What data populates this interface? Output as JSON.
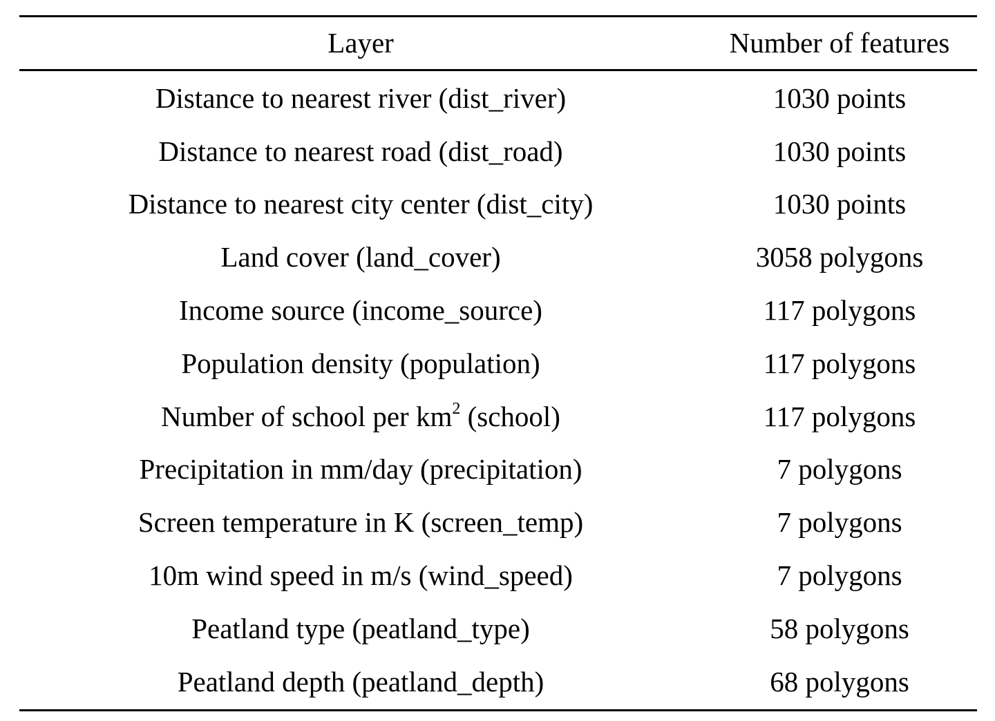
{
  "table": {
    "headers": {
      "layer": "Layer",
      "count": "Number of features"
    },
    "rows": [
      {
        "layer": "Distance to nearest river (dist_river)",
        "count": "1030 points"
      },
      {
        "layer": "Distance to nearest road (dist_road)",
        "count": "1030 points"
      },
      {
        "layer": "Distance to nearest city center (dist_city)",
        "count": "1030 points"
      },
      {
        "layer": "Land cover (land_cover)",
        "count": "3058 polygons"
      },
      {
        "layer": "Income source (income_source)",
        "count": "117 polygons"
      },
      {
        "layer": "Population density (population)",
        "count": "117 polygons"
      },
      {
        "layer_prefix": "Number of school per km",
        "layer_sup": "2",
        "layer_suffix": " (school)",
        "count": "117 polygons"
      },
      {
        "layer": "Precipitation in mm/day (precipitation)",
        "count": "7 polygons"
      },
      {
        "layer": "Screen temperature in K (screen_temp)",
        "count": "7 polygons"
      },
      {
        "layer": "10m wind speed in m/s (wind_speed)",
        "count": "7 polygons"
      },
      {
        "layer": "Peatland type (peatland_type)",
        "count": "58 polygons"
      },
      {
        "layer": "Peatland depth (peatland_depth)",
        "count": "68 polygons"
      }
    ]
  }
}
